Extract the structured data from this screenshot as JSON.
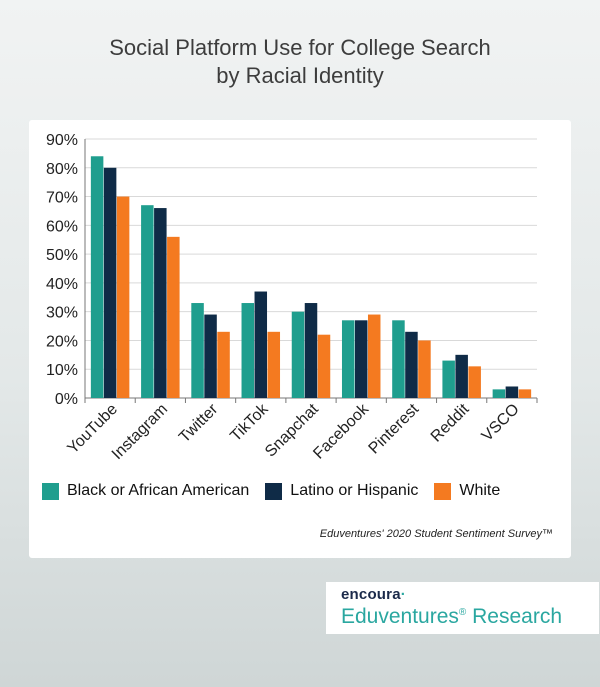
{
  "header": {
    "title_line1": "Social Platform Use for College Search",
    "title_line2": "by Racial Identity"
  },
  "chart_data": {
    "type": "bar",
    "title": "Social Platform Use for College Search by Racial Identity",
    "categories": [
      "YouTube",
      "Instagram",
      "Twitter",
      "TikTok",
      "Snapchat",
      "Facebook",
      "Pinterest",
      "Reddit",
      "VSCO"
    ],
    "series": [
      {
        "name": "Black or African American",
        "color": "#1f9e8e",
        "values": [
          84,
          67,
          33,
          33,
          30,
          27,
          27,
          13,
          3
        ]
      },
      {
        "name": "Latino or Hispanic",
        "color": "#0f2b47",
        "values": [
          80,
          66,
          29,
          37,
          33,
          27,
          23,
          15,
          4
        ]
      },
      {
        "name": "White",
        "color": "#f47a20",
        "values": [
          70,
          56,
          23,
          23,
          22,
          29,
          20,
          11,
          3
        ]
      }
    ],
    "yticks": [
      "0%",
      "10%",
      "20%",
      "30%",
      "40%",
      "50%",
      "60%",
      "70%",
      "80%",
      "90%"
    ],
    "ylim": [
      0,
      90
    ],
    "grid": true,
    "legend_position": "bottom",
    "source": "Eduventures' 2020 Student Sentiment Survey™"
  },
  "logo": {
    "brand": "encoura",
    "name": "Eduventures",
    "registered": "®",
    "suffix": " Research"
  }
}
